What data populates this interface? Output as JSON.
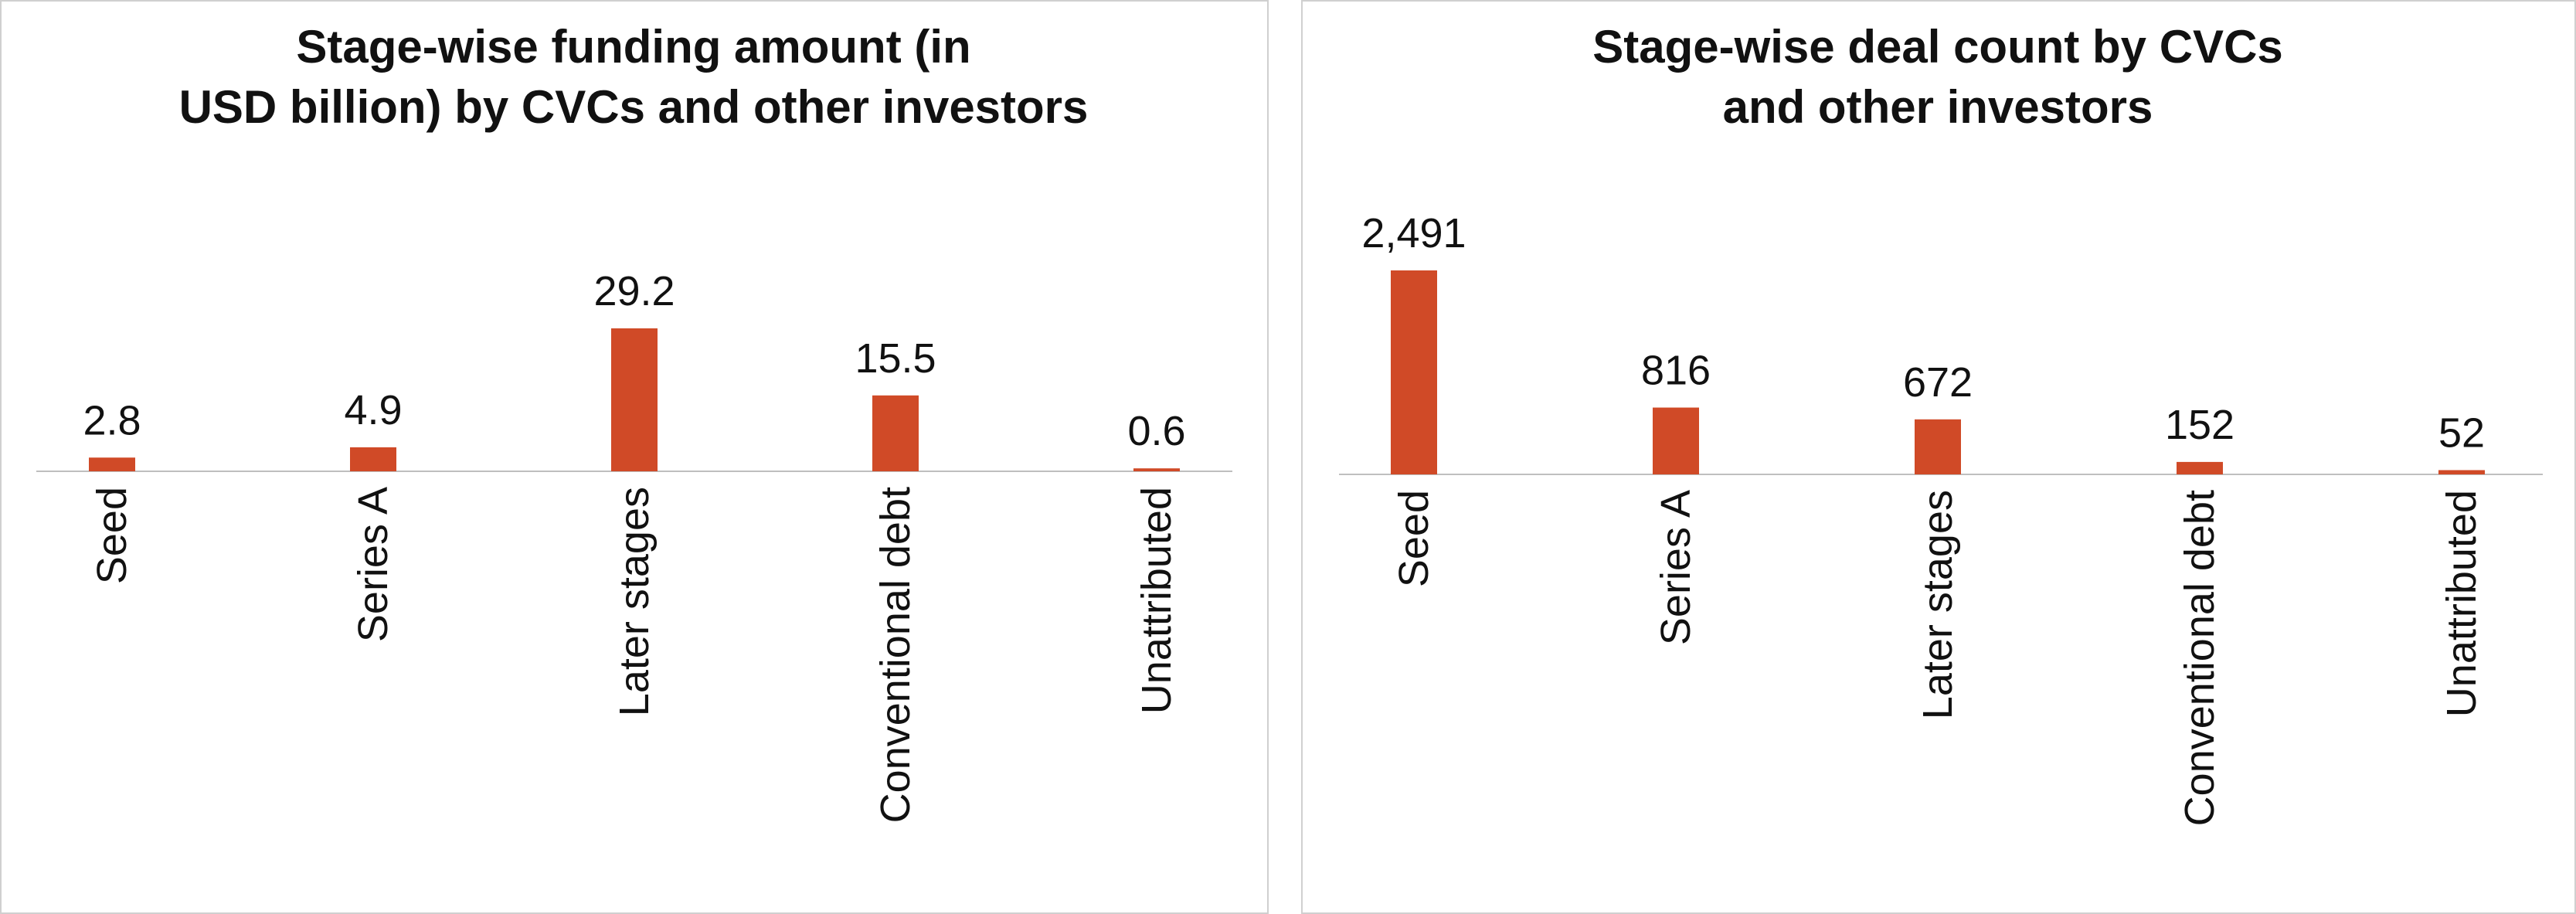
{
  "chart_data": [
    {
      "type": "bar",
      "title": "Stage-wise funding amount (in\nUSD billion) by CVCs and other investors",
      "categories": [
        "Seed",
        "Series A",
        "Later stages",
        "Conventional debt",
        "Unattributed"
      ],
      "values": [
        2.8,
        4.9,
        29.2,
        15.5,
        0.6
      ],
      "color": "#d04a27"
    },
    {
      "type": "bar",
      "title": "Stage-wise deal count by CVCs\nand other investors",
      "categories": [
        "Seed",
        "Series A",
        "Later stages",
        "Conventional debt",
        "Unattributed"
      ],
      "values": [
        2491,
        816,
        672,
        152,
        52
      ],
      "value_labels": [
        "2,491",
        "816",
        "672",
        "152",
        "52"
      ],
      "color": "#d04a27"
    }
  ]
}
